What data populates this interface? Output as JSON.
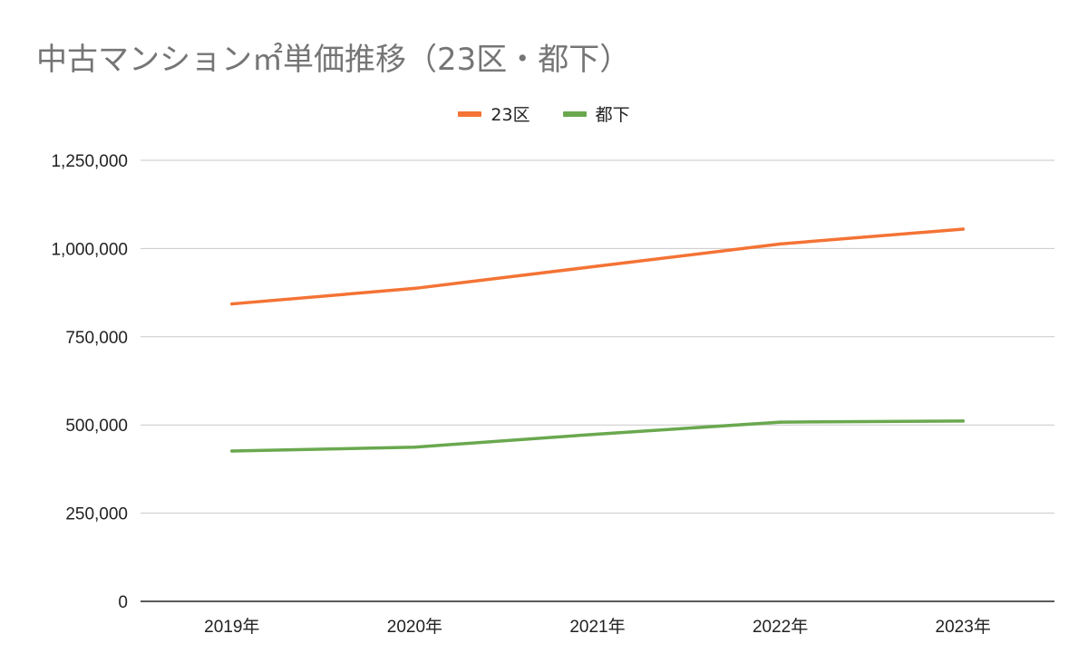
{
  "chart_data": {
    "type": "line",
    "title": "中古マンション㎡単価推移（23区・都下）",
    "categories": [
      "2019年",
      "2020年",
      "2021年",
      "2022年",
      "2023年"
    ],
    "series": [
      {
        "name": "23区",
        "color": "#f47335",
        "values": [
          843000,
          887000,
          950000,
          1013000,
          1055000
        ]
      },
      {
        "name": "都下",
        "color": "#6aa84f",
        "values": [
          426000,
          437000,
          474000,
          508000,
          511000
        ]
      }
    ],
    "yticks": [
      "0",
      "250,000",
      "500,000",
      "750,000",
      "1,000,000",
      "1,250,000"
    ],
    "ylim": [
      0,
      1250000
    ],
    "grid": true,
    "legend_position": "top-center"
  }
}
